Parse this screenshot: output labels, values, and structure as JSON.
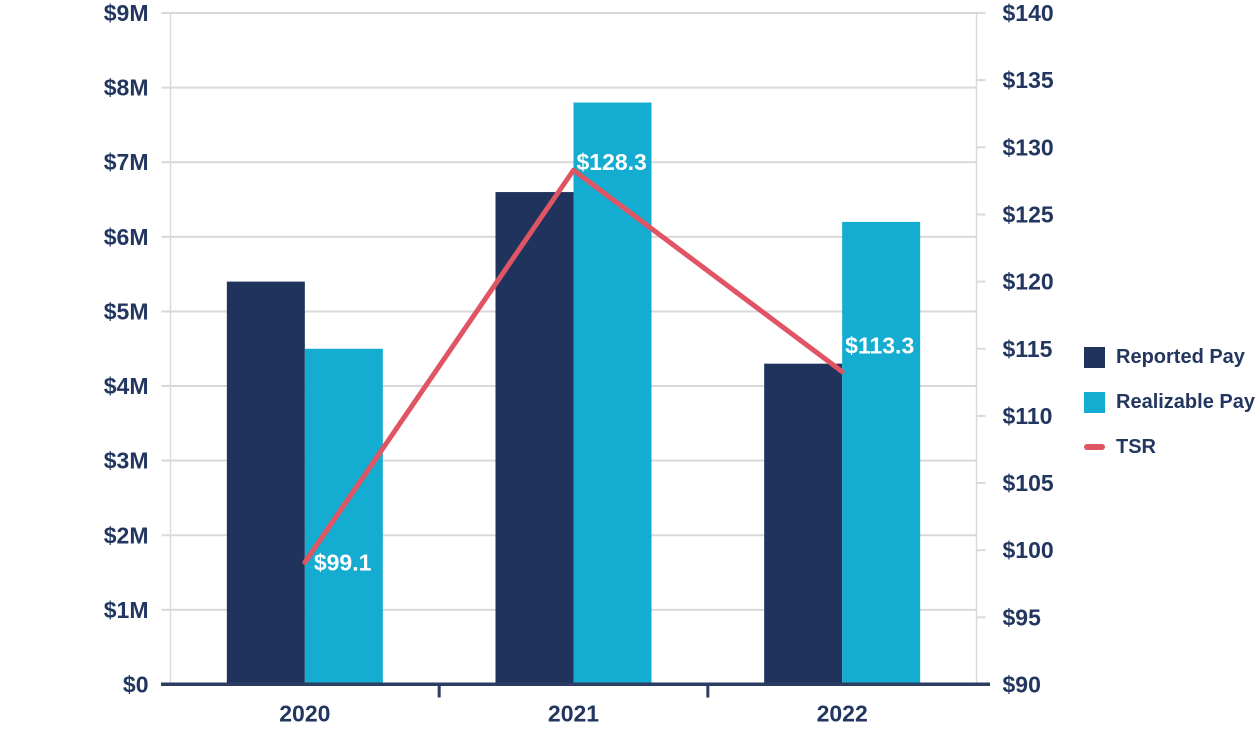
{
  "chart_data": {
    "type": "combo-bar-line",
    "title": "",
    "categories": [
      "2020",
      "2021",
      "2022"
    ],
    "series": [
      {
        "name": "Reported Pay",
        "type": "bar",
        "axis": "left",
        "color": "#1F335D",
        "values": [
          5.4,
          6.6,
          4.3
        ]
      },
      {
        "name": "Realizable Pay",
        "type": "bar",
        "axis": "left",
        "color": "#14ACD0",
        "values": [
          4.5,
          7.8,
          6.2
        ]
      },
      {
        "name": "TSR",
        "type": "line",
        "axis": "right",
        "color": "#E05563",
        "values": [
          99.1,
          128.3,
          113.3
        ],
        "point_labels": [
          "$99.1",
          "$128.3",
          "$113.3"
        ]
      }
    ],
    "left_axis": {
      "tick_labels": [
        "$0",
        "$1M",
        "$2M",
        "$3M",
        "$4M",
        "$5M",
        "$6M",
        "$7M",
        "$8M",
        "$9M"
      ],
      "range": [
        0,
        9
      ],
      "tick_step": 1,
      "gridlines": true
    },
    "right_axis": {
      "tick_labels": [
        "$90",
        "$95",
        "$100",
        "$105",
        "$110",
        "$115",
        "$120",
        "$125",
        "$130",
        "$135",
        "$140"
      ],
      "range": [
        90,
        140
      ],
      "tick_step": 5,
      "gridlines": false
    },
    "legend": {
      "position": "right",
      "items": [
        "Reported Pay",
        "Realizable Pay",
        "TSR"
      ]
    },
    "grid": true
  },
  "colors": {
    "background": "#FFFFFF",
    "axis_text": "#22365F",
    "gridline": "#D9D9D9",
    "baseline": "#2B3D62",
    "reported_pay": "#1F335D",
    "realizable_pay": "#14ACD0",
    "tsr_line": "#E05563",
    "point_label_text": "#FFFFFF"
  }
}
